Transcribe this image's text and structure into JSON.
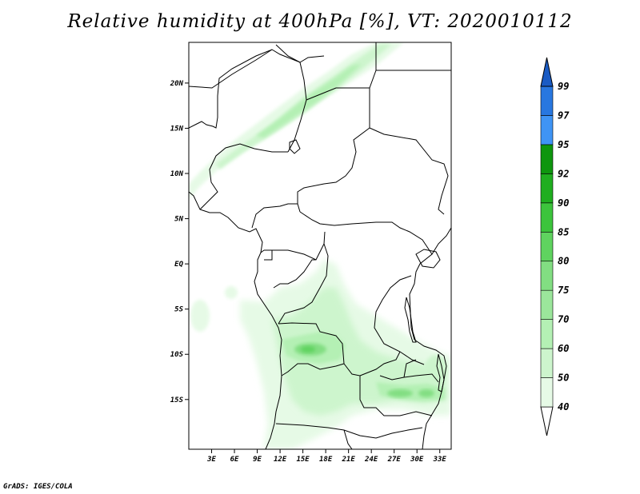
{
  "title": "Relative humidity at 400hPa [%], VT: 2020010112",
  "credit": "GrADS: IGES/COLA",
  "map": {
    "lon_range": [
      0,
      34.5
    ],
    "lat_range": [
      -20.5,
      24.5
    ],
    "x_ticks": [
      {
        "value": 3,
        "label": "3E"
      },
      {
        "value": 6,
        "label": "6E"
      },
      {
        "value": 9,
        "label": "9E"
      },
      {
        "value": 12,
        "label": "12E"
      },
      {
        "value": 15,
        "label": "15E"
      },
      {
        "value": 18,
        "label": "18E"
      },
      {
        "value": 21,
        "label": "21E"
      },
      {
        "value": 24,
        "label": "24E"
      },
      {
        "value": 27,
        "label": "27E"
      },
      {
        "value": 30,
        "label": "30E"
      },
      {
        "value": 33,
        "label": "33E"
      }
    ],
    "y_ticks": [
      {
        "value": 20,
        "label": "20N"
      },
      {
        "value": 15,
        "label": "15N"
      },
      {
        "value": 10,
        "label": "10N"
      },
      {
        "value": 5,
        "label": "5N"
      },
      {
        "value": 0,
        "label": "EQ"
      },
      {
        "value": -5,
        "label": "5S"
      },
      {
        "value": -10,
        "label": "10S"
      },
      {
        "value": -15,
        "label": "15S"
      }
    ]
  },
  "colorbar": {
    "levels": [
      "40",
      "50",
      "60",
      "70",
      "75",
      "80",
      "85",
      "90",
      "92",
      "95",
      "97",
      "99"
    ],
    "colors": [
      "#ffffff",
      "#e6fae6",
      "#cdf5cd",
      "#b4f0b4",
      "#9be69b",
      "#82de82",
      "#5fd35f",
      "#3cc43c",
      "#1fae1f",
      "#0e960e",
      "#3f94f5",
      "#2877e0",
      "#1a5bc4"
    ]
  }
}
